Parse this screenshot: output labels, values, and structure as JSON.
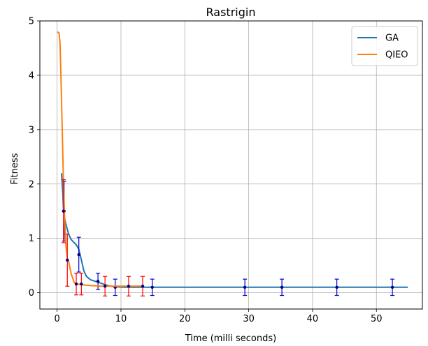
{
  "colors": {
    "ga": "#1f77b4",
    "qieo": "#ff7f0e",
    "ga_error": "#0000cc",
    "qieo_error": "#ff0000",
    "grid": "#b0b0b0"
  },
  "chart_data": {
    "type": "line",
    "title": "Rastrigin",
    "xlabel": "Time (milli seconds)",
    "ylabel": "Fitness",
    "xlim": [
      -2.7,
      57.2
    ],
    "ylim": [
      -0.3,
      5.0
    ],
    "xticks": [
      0,
      10,
      20,
      30,
      40,
      50
    ],
    "yticks": [
      0,
      1,
      2,
      3,
      4,
      5
    ],
    "grid": true,
    "legend_position": "top-right",
    "series": [
      {
        "name": "GA",
        "color": "#1f77b4",
        "error_color": "#0000cc",
        "x": [
          0.7,
          0.9,
          1.0,
          1.2,
          1.4,
          1.8,
          2.2,
          2.6,
          3.0,
          3.4,
          3.8,
          4.2,
          4.6,
          5.2,
          6.0,
          7.0,
          8.0,
          9.0,
          10.5,
          12.0,
          14.0,
          15.0,
          20.0,
          30.0,
          40.0,
          50.0,
          54.9
        ],
        "y": [
          2.2,
          1.8,
          1.5,
          1.35,
          1.25,
          1.08,
          0.98,
          0.93,
          0.88,
          0.8,
          0.6,
          0.4,
          0.3,
          0.24,
          0.21,
          0.17,
          0.13,
          0.11,
          0.1,
          0.1,
          0.1,
          0.1,
          0.1,
          0.1,
          0.1,
          0.1,
          0.1
        ],
        "error_points": [
          {
            "x": 1.1,
            "y": 1.5,
            "err": 0.55
          },
          {
            "x": 3.4,
            "y": 0.7,
            "err": 0.32
          },
          {
            "x": 6.4,
            "y": 0.21,
            "err": 0.15
          },
          {
            "x": 9.1,
            "y": 0.1,
            "err": 0.15
          },
          {
            "x": 14.9,
            "y": 0.1,
            "err": 0.15
          },
          {
            "x": 29.4,
            "y": 0.1,
            "err": 0.15
          },
          {
            "x": 35.2,
            "y": 0.1,
            "err": 0.15
          },
          {
            "x": 43.8,
            "y": 0.1,
            "err": 0.15
          },
          {
            "x": 52.5,
            "y": 0.1,
            "err": 0.15
          }
        ]
      },
      {
        "name": "QIEO",
        "color": "#ff7f0e",
        "error_color": "#ff0000",
        "x": [
          0.0,
          0.3,
          0.45,
          0.6,
          0.8,
          1.0,
          1.2,
          1.4,
          1.6,
          1.8,
          2.2,
          2.7,
          3.2,
          3.7,
          4.5,
          5.5,
          7.0,
          9.0,
          11.0,
          13.0,
          13.5
        ],
        "y": [
          4.8,
          4.78,
          4.6,
          4.0,
          3.0,
          2.0,
          1.3,
          0.85,
          0.62,
          0.58,
          0.35,
          0.18,
          0.16,
          0.15,
          0.14,
          0.13,
          0.12,
          0.12,
          0.12,
          0.12,
          0.12
        ],
        "error_points": [
          {
            "x": 1.0,
            "y": 1.5,
            "err": 0.58
          },
          {
            "x": 1.6,
            "y": 0.6,
            "err": 0.48
          },
          {
            "x": 3.0,
            "y": 0.16,
            "err": 0.2
          },
          {
            "x": 3.8,
            "y": 0.16,
            "err": 0.2
          },
          {
            "x": 7.5,
            "y": 0.12,
            "err": 0.18
          },
          {
            "x": 11.2,
            "y": 0.12,
            "err": 0.18
          },
          {
            "x": 13.4,
            "y": 0.12,
            "err": 0.18
          }
        ]
      }
    ]
  }
}
